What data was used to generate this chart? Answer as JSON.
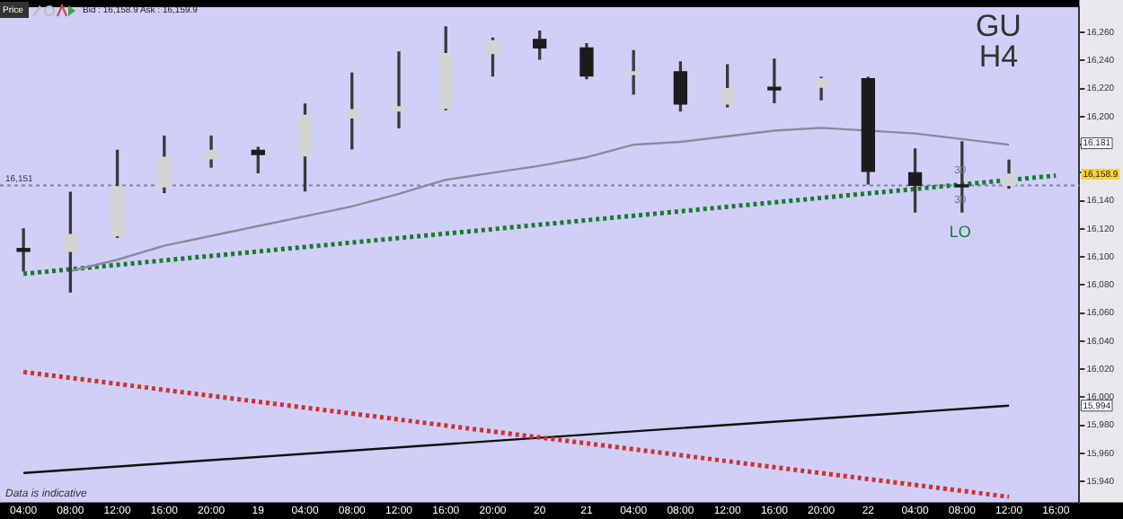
{
  "chart_data": {
    "type": "candlestick",
    "title": "GU",
    "subtitle": "H4",
    "categories": [
      "04:00",
      "08:00",
      "12:00",
      "16:00",
      "20:00",
      "19",
      "04:00",
      "08:00",
      "12:00",
      "16:00",
      "20:00",
      "20",
      "21",
      "04:00",
      "08:00",
      "12:00",
      "16:00",
      "20:00",
      "22",
      "04:00",
      "08:00",
      "12:00",
      "16:00"
    ],
    "ohlc": [
      [
        16106,
        16120,
        16090,
        16104
      ],
      [
        16104,
        16146,
        16075,
        16116
      ],
      [
        16115,
        16176,
        16114,
        16150
      ],
      [
        16150,
        16186,
        16146,
        16171
      ],
      [
        16170,
        16186,
        16164,
        16176
      ],
      [
        16176,
        16178,
        16160,
        16173
      ],
      [
        16172,
        16209,
        16147,
        16201
      ],
      [
        16199,
        16231,
        16177,
        16205
      ],
      [
        16204,
        16246,
        16192,
        16207
      ],
      [
        16206,
        16264,
        16205,
        16245
      ],
      [
        16245,
        16256,
        16229,
        16254
      ],
      [
        16255,
        16261,
        16241,
        16249
      ],
      [
        16249,
        16252,
        16227,
        16229
      ],
      [
        16230,
        16247,
        16216,
        16232
      ],
      [
        16232,
        16239,
        16204,
        16209
      ],
      [
        16209,
        16237,
        16207,
        16220
      ],
      [
        16221,
        16241,
        16210,
        16219
      ],
      [
        16221,
        16228,
        16212,
        16227
      ],
      [
        16227,
        16228,
        16152,
        16161
      ],
      [
        16160,
        16177,
        16132,
        16151
      ],
      [
        16151,
        16182,
        16132,
        16150
      ],
      [
        16151,
        16169,
        16149,
        16159
      ],
      null
    ],
    "colors": [
      "#1c1c1c",
      "#d4d4d4",
      "#d4d4d4",
      "#d4d4d4",
      "#d4d4d4",
      "#1c1c1c",
      "#d4d4d4",
      "#d4d4d4",
      "#d4d4d4",
      "#d4d4d4",
      "#d4d4d4",
      "#1c1c1c",
      "#1c1c1c",
      "#d4d4d4",
      "#1c1c1c",
      "#d4d4d4",
      "#1c1c1c",
      "#d4d4d4",
      "#1c1c1c",
      "#1c1c1c",
      "#1c1c1c",
      "#d4d4d4",
      null
    ],
    "series": [
      {
        "type": "line",
        "color": "#8a8a9c",
        "line_style": "solid",
        "values": [
          null,
          16090,
          16098,
          16108,
          16115,
          16122,
          16129,
          16136,
          16145,
          16155,
          16160,
          16165,
          16171,
          16180,
          16182,
          16186,
          16190,
          16192,
          null,
          16188,
          16184,
          16180,
          null
        ]
      },
      {
        "type": "line",
        "color": "#1a7a30",
        "line_style": "dotted",
        "values": [
          16088,
          null,
          null,
          null,
          null,
          null,
          null,
          null,
          null,
          null,
          null,
          null,
          null,
          null,
          null,
          null,
          null,
          null,
          null,
          null,
          null,
          null,
          16158
        ]
      },
      {
        "type": "line",
        "color": "#d03030",
        "line_style": "dotted",
        "values": [
          16018,
          null,
          null,
          null,
          null,
          null,
          null,
          null,
          null,
          null,
          null,
          null,
          null,
          null,
          null,
          null,
          null,
          null,
          null,
          null,
          null,
          15929,
          null
        ]
      },
      {
        "type": "line",
        "color": "#101010",
        "line_style": "solid",
        "values": [
          15946,
          null,
          null,
          null,
          null,
          null,
          null,
          null,
          null,
          null,
          null,
          null,
          null,
          null,
          null,
          null,
          null,
          null,
          null,
          null,
          null,
          15994,
          null
        ]
      }
    ],
    "ylim": [
      15925,
      16278
    ],
    "yticks": [
      {
        "value": 15940,
        "label": "15,940"
      },
      {
        "value": 15960,
        "label": "15,960"
      },
      {
        "value": 15980,
        "label": "15,980"
      },
      {
        "value": 16000,
        "label": "16,000"
      },
      {
        "value": 16020,
        "label": "16,020"
      },
      {
        "value": 16040,
        "label": "16,040"
      },
      {
        "value": 16060,
        "label": "16,060"
      },
      {
        "value": 16080,
        "label": "16,080"
      },
      {
        "value": 16100,
        "label": "16,100"
      },
      {
        "value": 16120,
        "label": "16,120"
      },
      {
        "value": 16140,
        "label": "16,140"
      },
      {
        "value": 16160,
        "label": null
      },
      {
        "value": 16180,
        "label": null
      },
      {
        "value": 16200,
        "label": "16,200"
      },
      {
        "value": 16220,
        "label": "16,220"
      },
      {
        "value": 16240,
        "label": "16,240"
      },
      {
        "value": 16260,
        "label": "16,260"
      }
    ],
    "ref_lines": [
      {
        "axis": "y",
        "value": 16151,
        "label": "16,151",
        "color": "#8080a8",
        "line_style": "dotted"
      }
    ],
    "annotations": [
      "Price",
      "Bid : 16,158.9 Ask : 16,159.9",
      "Data is indicative",
      "LO",
      "30",
      "30",
      {
        "text": "16,181",
        "y": 16181
      },
      "16,158.9",
      {
        "text": "15,994",
        "y": 15994
      }
    ],
    "grid": false,
    "legend": false
  }
}
